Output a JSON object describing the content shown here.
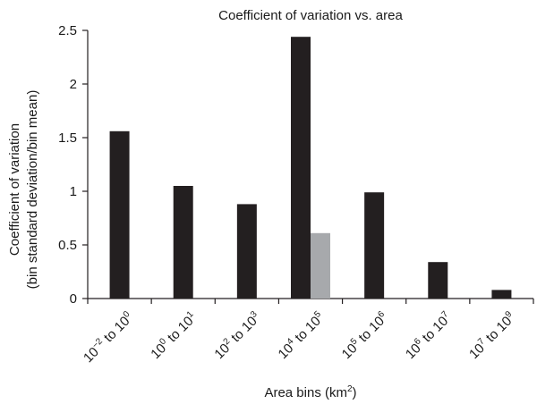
{
  "chart_data": {
    "type": "bar",
    "title": "Coefficient of variation vs. area",
    "xlabel": {
      "text": "Area bins (km",
      "sup": "2",
      "suffix": ")"
    },
    "ylabel": [
      "Coefficient of variation",
      "(bin standard deviation/bin mean)"
    ],
    "ylim": [
      0,
      2.5
    ],
    "yticks": [
      "0",
      "0.5",
      "1",
      "1.5",
      "2",
      "2.5"
    ],
    "grid": false,
    "categories": [
      {
        "base1": "10",
        "exp1": "−2",
        "mid": " to ",
        "base2": "10",
        "exp2": "0"
      },
      {
        "base1": "10",
        "exp1": "0",
        "mid": " to ",
        "base2": "10",
        "exp2": "1"
      },
      {
        "base1": "10",
        "exp1": "2",
        "mid": " to ",
        "base2": "10",
        "exp2": "3"
      },
      {
        "base1": "10",
        "exp1": "4",
        "mid": " to ",
        "base2": "10",
        "exp2": "5"
      },
      {
        "base1": "10",
        "exp1": "5",
        "mid": " to ",
        "base2": "10",
        "exp2": "6"
      },
      {
        "base1": "10",
        "exp1": "6",
        "mid": " to ",
        "base2": "10",
        "exp2": "7"
      },
      {
        "base1": "10",
        "exp1": "7",
        "mid": " to ",
        "base2": "10",
        "exp2": "9"
      }
    ],
    "series": [
      {
        "color": "#231f20",
        "values": [
          1.56,
          1.05,
          0.88,
          2.44,
          0.99,
          0.34,
          0.08
        ]
      },
      {
        "color": "#a7a9ac",
        "values": [
          null,
          null,
          null,
          0.61,
          null,
          null,
          null
        ]
      }
    ]
  }
}
